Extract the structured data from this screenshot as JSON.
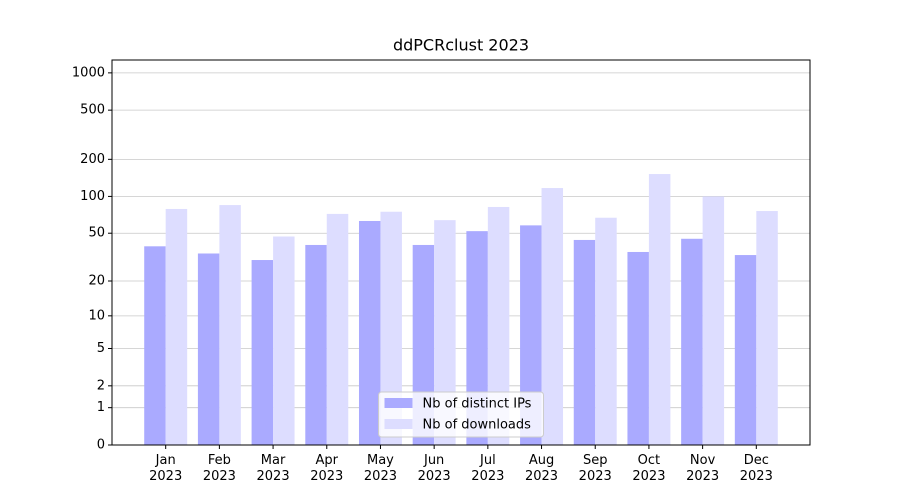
{
  "chart_data": {
    "type": "bar",
    "title": "ddPCRclust 2023",
    "categories": [
      "Jan\n2023",
      "Feb\n2023",
      "Mar\n2023",
      "Apr\n2023",
      "May\n2023",
      "Jun\n2023",
      "Jul\n2023",
      "Aug\n2023",
      "Sep\n2023",
      "Oct\n2023",
      "Nov\n2023",
      "Dec\n2023"
    ],
    "series": [
      {
        "name": "Nb of distinct IPs",
        "color": "#aaaaff",
        "values": [
          39,
          34,
          30,
          40,
          63,
          40,
          52,
          58,
          44,
          35,
          45,
          33
        ]
      },
      {
        "name": "Nb of downloads",
        "color": "#ddddff",
        "values": [
          79,
          85,
          47,
          72,
          75,
          64,
          82,
          117,
          67,
          152,
          100,
          76
        ]
      }
    ],
    "yscale": "log1p",
    "ylim": [
      0,
      1270
    ],
    "yticks": [
      0,
      1,
      2,
      5,
      10,
      20,
      50,
      100,
      200,
      500,
      1000
    ],
    "grid": true,
    "legend": "lower center"
  }
}
